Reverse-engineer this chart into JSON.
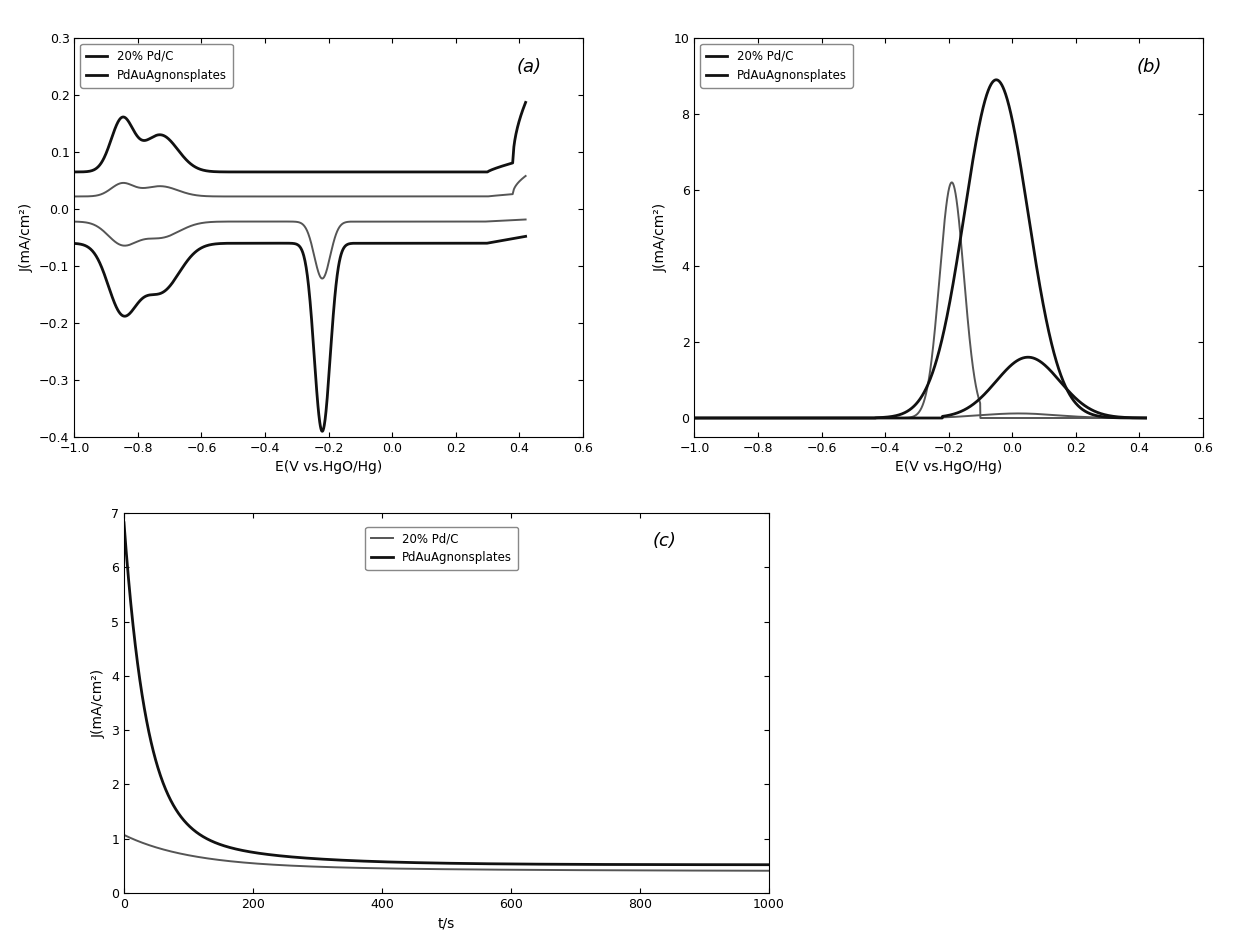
{
  "fig_bg": "#ffffff",
  "panel_a": {
    "label": "(a)",
    "xlabel": "E(V vs.HgO/Hg)",
    "ylabel": "J(mA/cm²)",
    "xlim": [
      -1.0,
      0.6
    ],
    "ylim": [
      -0.4,
      0.3
    ],
    "xticks": [
      -1.0,
      -0.8,
      -0.6,
      -0.4,
      -0.2,
      0.0,
      0.2,
      0.4,
      0.6
    ],
    "yticks": [
      -0.4,
      -0.3,
      -0.2,
      -0.1,
      0.0,
      0.1,
      0.2,
      0.3
    ],
    "legend1": "20% Pd/C",
    "legend2": "PdAuAgnonsplates"
  },
  "panel_b": {
    "label": "(b)",
    "xlabel": "E(V vs.HgO/Hg)",
    "ylabel": "J(mA/cm²)",
    "xlim": [
      -1.0,
      0.6
    ],
    "ylim": [
      -0.5,
      10.0
    ],
    "xticks": [
      -1.0,
      -0.8,
      -0.6,
      -0.4,
      -0.2,
      0.0,
      0.2,
      0.4,
      0.6
    ],
    "yticks": [
      0,
      2,
      4,
      6,
      8,
      10
    ],
    "legend1": "20% Pd/C",
    "legend2": "PdAuAgnonsplates"
  },
  "panel_c": {
    "label": "(c)",
    "xlabel": "t/s",
    "ylabel": "J(mA/cm²)",
    "xlim": [
      0,
      1000
    ],
    "ylim": [
      0,
      7
    ],
    "xticks": [
      0,
      200,
      400,
      600,
      800,
      1000
    ],
    "yticks": [
      0,
      1,
      2,
      3,
      4,
      5,
      6,
      7
    ],
    "legend1": "20% Pd/C",
    "legend2": "PdAuAgnonsplates"
  },
  "lw_thick": 2.0,
  "lw_thin": 1.4,
  "color_thick": "#111111",
  "color_thin": "#555555"
}
